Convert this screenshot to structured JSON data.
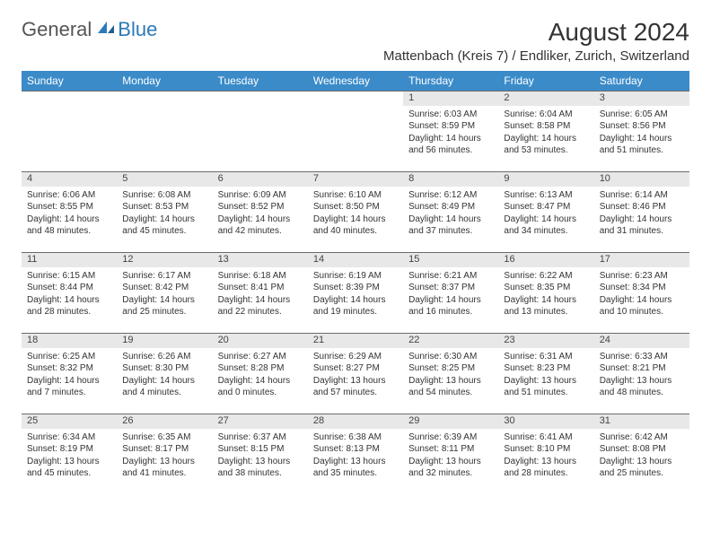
{
  "logo": {
    "general": "General",
    "blue": "Blue"
  },
  "title": "August 2024",
  "location": "Mattenbach (Kreis 7) / Endliker, Zurich, Switzerland",
  "colors": {
    "header_bg": "#3b8bc9",
    "header_text": "#ffffff",
    "daynum_bg": "#e8e8e8",
    "daynum_border": "#6b6b6b",
    "body_text": "#333333",
    "logo_blue": "#2a7ab9",
    "logo_gray": "#555555"
  },
  "day_headers": [
    "Sunday",
    "Monday",
    "Tuesday",
    "Wednesday",
    "Thursday",
    "Friday",
    "Saturday"
  ],
  "weeks": [
    {
      "nums": [
        "",
        "",
        "",
        "",
        "1",
        "2",
        "3"
      ],
      "cells": [
        null,
        null,
        null,
        null,
        {
          "sunrise": "6:03 AM",
          "sunset": "8:59 PM",
          "daylight": "14 hours and 56 minutes."
        },
        {
          "sunrise": "6:04 AM",
          "sunset": "8:58 PM",
          "daylight": "14 hours and 53 minutes."
        },
        {
          "sunrise": "6:05 AM",
          "sunset": "8:56 PM",
          "daylight": "14 hours and 51 minutes."
        }
      ]
    },
    {
      "nums": [
        "4",
        "5",
        "6",
        "7",
        "8",
        "9",
        "10"
      ],
      "cells": [
        {
          "sunrise": "6:06 AM",
          "sunset": "8:55 PM",
          "daylight": "14 hours and 48 minutes."
        },
        {
          "sunrise": "6:08 AM",
          "sunset": "8:53 PM",
          "daylight": "14 hours and 45 minutes."
        },
        {
          "sunrise": "6:09 AM",
          "sunset": "8:52 PM",
          "daylight": "14 hours and 42 minutes."
        },
        {
          "sunrise": "6:10 AM",
          "sunset": "8:50 PM",
          "daylight": "14 hours and 40 minutes."
        },
        {
          "sunrise": "6:12 AM",
          "sunset": "8:49 PM",
          "daylight": "14 hours and 37 minutes."
        },
        {
          "sunrise": "6:13 AM",
          "sunset": "8:47 PM",
          "daylight": "14 hours and 34 minutes."
        },
        {
          "sunrise": "6:14 AM",
          "sunset": "8:46 PM",
          "daylight": "14 hours and 31 minutes."
        }
      ]
    },
    {
      "nums": [
        "11",
        "12",
        "13",
        "14",
        "15",
        "16",
        "17"
      ],
      "cells": [
        {
          "sunrise": "6:15 AM",
          "sunset": "8:44 PM",
          "daylight": "14 hours and 28 minutes."
        },
        {
          "sunrise": "6:17 AM",
          "sunset": "8:42 PM",
          "daylight": "14 hours and 25 minutes."
        },
        {
          "sunrise": "6:18 AM",
          "sunset": "8:41 PM",
          "daylight": "14 hours and 22 minutes."
        },
        {
          "sunrise": "6:19 AM",
          "sunset": "8:39 PM",
          "daylight": "14 hours and 19 minutes."
        },
        {
          "sunrise": "6:21 AM",
          "sunset": "8:37 PM",
          "daylight": "14 hours and 16 minutes."
        },
        {
          "sunrise": "6:22 AM",
          "sunset": "8:35 PM",
          "daylight": "14 hours and 13 minutes."
        },
        {
          "sunrise": "6:23 AM",
          "sunset": "8:34 PM",
          "daylight": "14 hours and 10 minutes."
        }
      ]
    },
    {
      "nums": [
        "18",
        "19",
        "20",
        "21",
        "22",
        "23",
        "24"
      ],
      "cells": [
        {
          "sunrise": "6:25 AM",
          "sunset": "8:32 PM",
          "daylight": "14 hours and 7 minutes."
        },
        {
          "sunrise": "6:26 AM",
          "sunset": "8:30 PM",
          "daylight": "14 hours and 4 minutes."
        },
        {
          "sunrise": "6:27 AM",
          "sunset": "8:28 PM",
          "daylight": "14 hours and 0 minutes."
        },
        {
          "sunrise": "6:29 AM",
          "sunset": "8:27 PM",
          "daylight": "13 hours and 57 minutes."
        },
        {
          "sunrise": "6:30 AM",
          "sunset": "8:25 PM",
          "daylight": "13 hours and 54 minutes."
        },
        {
          "sunrise": "6:31 AM",
          "sunset": "8:23 PM",
          "daylight": "13 hours and 51 minutes."
        },
        {
          "sunrise": "6:33 AM",
          "sunset": "8:21 PM",
          "daylight": "13 hours and 48 minutes."
        }
      ]
    },
    {
      "nums": [
        "25",
        "26",
        "27",
        "28",
        "29",
        "30",
        "31"
      ],
      "cells": [
        {
          "sunrise": "6:34 AM",
          "sunset": "8:19 PM",
          "daylight": "13 hours and 45 minutes."
        },
        {
          "sunrise": "6:35 AM",
          "sunset": "8:17 PM",
          "daylight": "13 hours and 41 minutes."
        },
        {
          "sunrise": "6:37 AM",
          "sunset": "8:15 PM",
          "daylight": "13 hours and 38 minutes."
        },
        {
          "sunrise": "6:38 AM",
          "sunset": "8:13 PM",
          "daylight": "13 hours and 35 minutes."
        },
        {
          "sunrise": "6:39 AM",
          "sunset": "8:11 PM",
          "daylight": "13 hours and 32 minutes."
        },
        {
          "sunrise": "6:41 AM",
          "sunset": "8:10 PM",
          "daylight": "13 hours and 28 minutes."
        },
        {
          "sunrise": "6:42 AM",
          "sunset": "8:08 PM",
          "daylight": "13 hours and 25 minutes."
        }
      ]
    }
  ],
  "labels": {
    "sunrise": "Sunrise:",
    "sunset": "Sunset:",
    "daylight": "Daylight:"
  }
}
